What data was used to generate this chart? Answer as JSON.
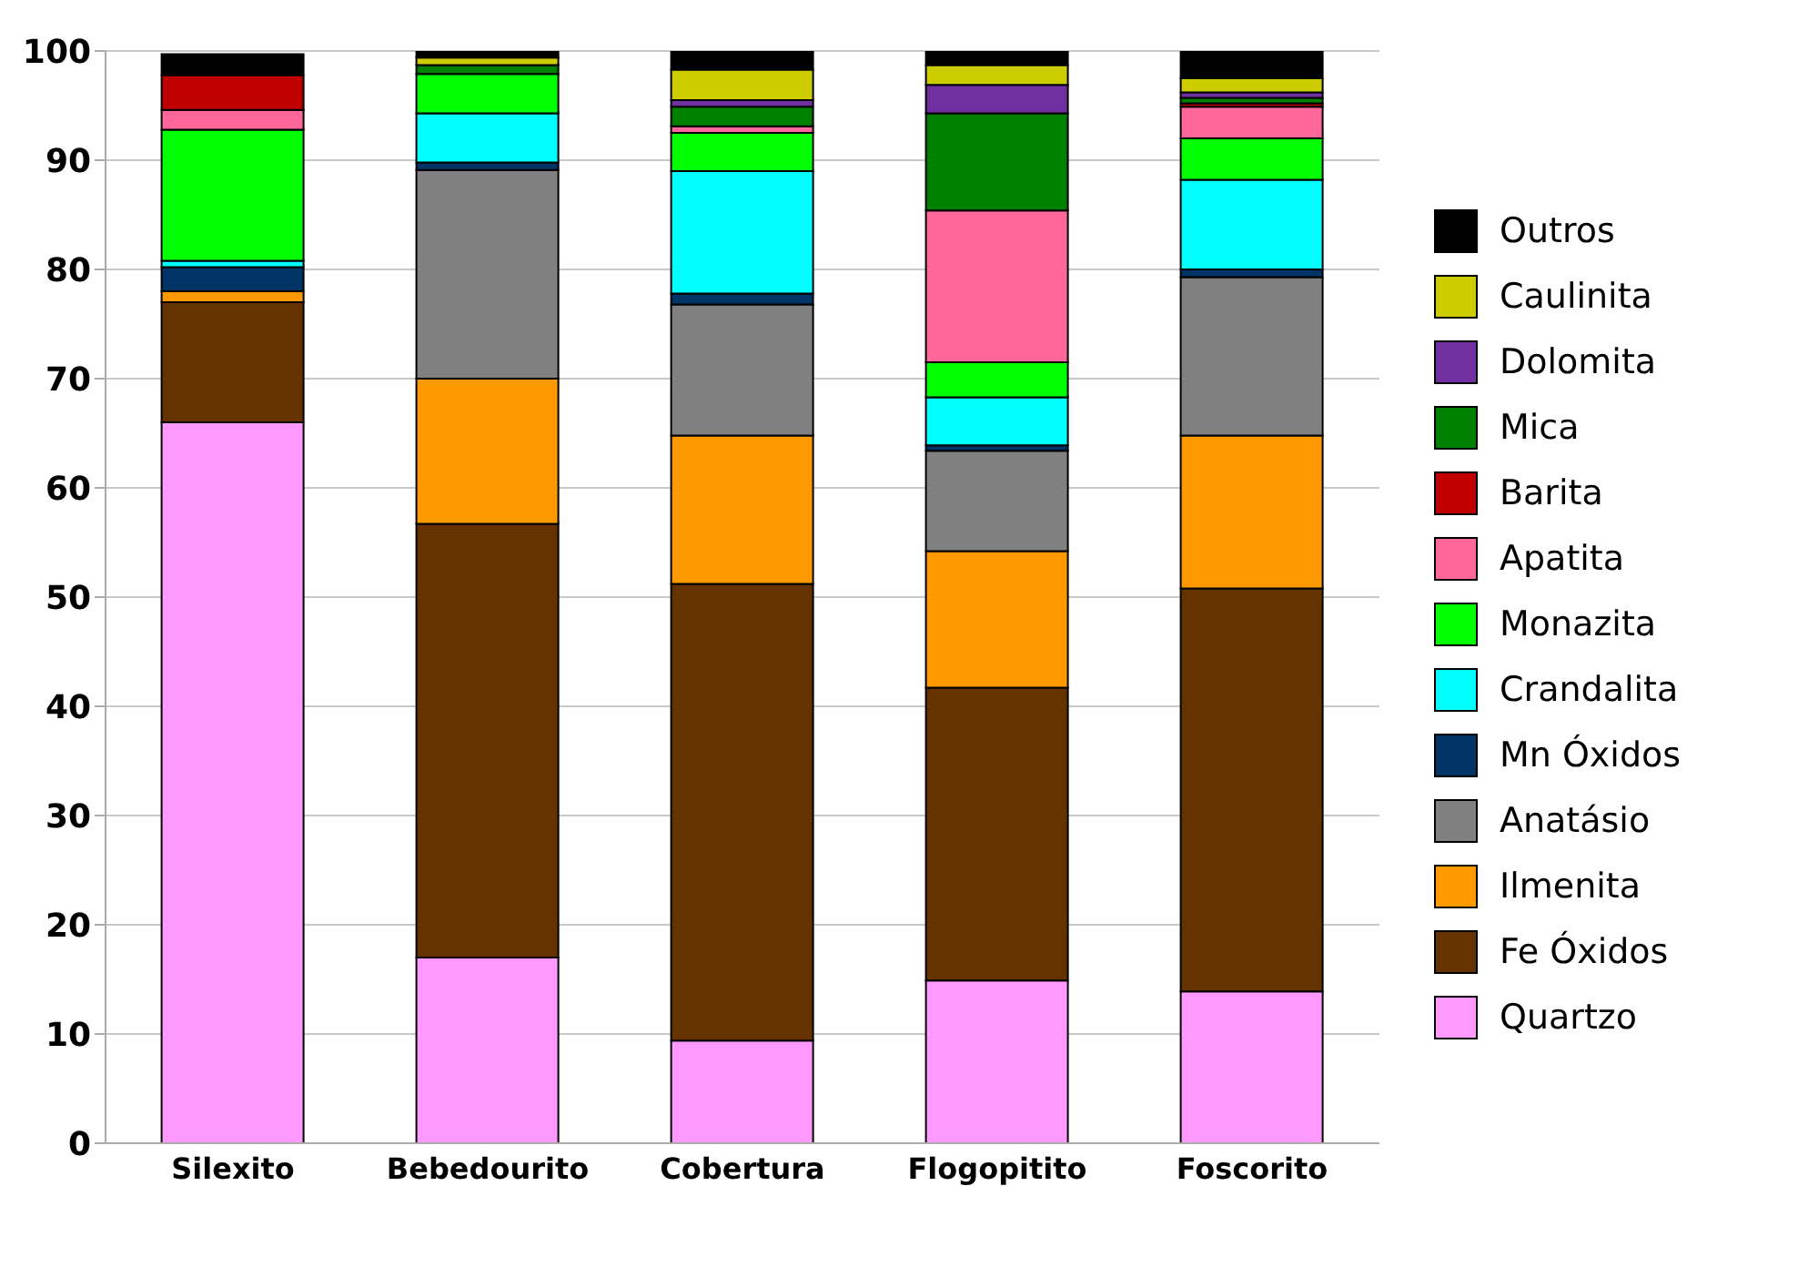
{
  "chart_data": {
    "type": "bar",
    "stacked": true,
    "categories": [
      "Silexito",
      "Bebedourito",
      "Cobertura",
      "Flogopitito",
      "Foscorito"
    ],
    "series": [
      {
        "name": "Quartzo",
        "color": "#ff99ff",
        "values": [
          66,
          17,
          9.4,
          14.9,
          13.9
        ]
      },
      {
        "name": "Fe Óxidos",
        "color": "#663300",
        "values": [
          11,
          39.7,
          41.8,
          26.8,
          36.9
        ]
      },
      {
        "name": "Ilmenita",
        "color": "#ff9900",
        "values": [
          1,
          13.3,
          13.6,
          12.5,
          14
        ]
      },
      {
        "name": "Anatásio",
        "color": "#808080",
        "values": [
          0,
          19.1,
          12,
          9.2,
          14.5
        ]
      },
      {
        "name": "Mn Óxidos",
        "color": "#003366",
        "values": [
          2.2,
          0.7,
          1,
          0.5,
          0.7
        ]
      },
      {
        "name": "Crandalita",
        "color": "#00ffff",
        "values": [
          0.6,
          4.5,
          11.2,
          4.4,
          8.2
        ]
      },
      {
        "name": "Monazita",
        "color": "#00ff00",
        "values": [
          12,
          3.6,
          3.5,
          3.2,
          3.8
        ]
      },
      {
        "name": "Apatita",
        "color": "#ff6699",
        "values": [
          1.8,
          0,
          0.6,
          13.9,
          2.9
        ]
      },
      {
        "name": "Barita",
        "color": "#c00000",
        "values": [
          3.2,
          0,
          0,
          0,
          0.3
        ]
      },
      {
        "name": "Mica",
        "color": "#008000",
        "values": [
          0,
          0.8,
          1.8,
          8.9,
          0.5
        ]
      },
      {
        "name": "Dolomita",
        "color": "#7030a0",
        "values": [
          0,
          0,
          0.6,
          2.6,
          0.5
        ]
      },
      {
        "name": "Caulinita",
        "color": "#cccc00",
        "values": [
          0,
          0.7,
          2.8,
          1.8,
          1.3
        ]
      },
      {
        "name": "Outros",
        "color": "#000000",
        "values": [
          1.9,
          0.6,
          1.7,
          1.3,
          2.5
        ]
      }
    ],
    "ylim": [
      0,
      100
    ],
    "yticks": [
      0,
      10,
      20,
      30,
      40,
      50,
      60,
      70,
      80,
      90,
      100
    ],
    "grid": "y",
    "legend": "right"
  }
}
